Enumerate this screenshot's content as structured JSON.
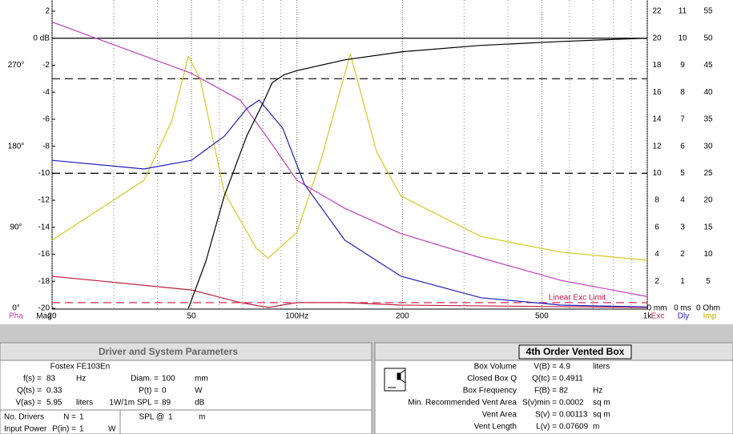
{
  "chart_data": {
    "type": "line",
    "xscale": "log",
    "xlim": [
      20,
      1000
    ],
    "xticks": [
      20,
      50,
      {
        "value": 100,
        "label": "100Hz"
      },
      200,
      500,
      {
        "value": 1000,
        "label": "1k"
      }
    ],
    "xminor": [
      30,
      40,
      60,
      70,
      80,
      90,
      300,
      400,
      600,
      700,
      800,
      900
    ],
    "axes": {
      "phase": {
        "label": "Pha",
        "color": "#c040c0",
        "lim": [
          0,
          330
        ],
        "ticks": [
          {
            "value": 0,
            "label": "0°"
          },
          {
            "value": 90,
            "label": "90°"
          },
          {
            "value": 180,
            "label": "180°"
          },
          {
            "value": 270,
            "label": "270°"
          }
        ]
      },
      "mag": {
        "label": "Mag",
        "color": "#000000",
        "lim": [
          -20,
          2
        ],
        "ticks": [
          2,
          {
            "value": 0,
            "label": "0 dB"
          },
          -2,
          -4,
          -6,
          -8,
          -10,
          -12,
          -14,
          -16,
          -18,
          -20
        ]
      },
      "exc": {
        "label": "Exc",
        "color": "#c02040",
        "lim": [
          0,
          22
        ],
        "ticks": [
          22,
          20,
          18,
          16,
          14,
          12,
          10,
          8,
          6,
          4,
          2,
          {
            "value": 0,
            "label": "0 mm"
          }
        ]
      },
      "dly": {
        "label": "Dly",
        "color": "#2020c0",
        "lim": [
          0,
          11
        ],
        "ticks": [
          11,
          10,
          9,
          8,
          7,
          6,
          5,
          4,
          3,
          2,
          1,
          {
            "value": 0,
            "label": "0 ms"
          }
        ]
      },
      "imp": {
        "label": "Imp",
        "color": "#b8a800",
        "lim": [
          0,
          55
        ],
        "ticks": [
          55,
          50,
          45,
          40,
          35,
          30,
          25,
          20,
          15,
          10,
          5,
          {
            "value": 0,
            "label": "0 Ohm"
          }
        ]
      }
    },
    "ref_lines": [
      {
        "axis": "mag",
        "value": 0,
        "style": "solid",
        "color": "#000000"
      },
      {
        "axis": "mag",
        "value": -3,
        "style": "dashed",
        "color": "#000000"
      },
      {
        "axis": "mag",
        "value": -10,
        "style": "dashed",
        "color": "#000000"
      },
      {
        "axis": "exc",
        "value": 0.42,
        "style": "dashed",
        "color": "#d01040",
        "label": "Linear Exc Limit"
      }
    ],
    "series": [
      {
        "axis": "imp",
        "color": "#d8c820",
        "x": [
          20,
          36.6,
          44,
          49,
          53,
          62,
          76.6,
          82.8,
          100,
          117,
          142,
          169,
          198,
          335,
          566,
          1000
        ],
        "values": [
          12.6,
          23.7,
          34.8,
          46.7,
          42.3,
          21.5,
          11.1,
          9.3,
          14.1,
          27.4,
          47.1,
          28.9,
          20.8,
          13.3,
          10.4,
          8.9
        ]
      },
      {
        "axis": "phase",
        "color": "#c040c0",
        "x": [
          20,
          50,
          69,
          85,
          100,
          137,
          198,
          335,
          566,
          1000
        ],
        "values": [
          318,
          261,
          231,
          182,
          142,
          111,
          83,
          56,
          31,
          13
        ]
      },
      {
        "axis": "exc",
        "color": "#c02040",
        "x": [
          20,
          50,
          69,
          83,
          100,
          137,
          198,
          1000
        ],
        "values": [
          2.37,
          1.36,
          0.42,
          0.06,
          0.42,
          0.42,
          0.24,
          0.06
        ]
      },
      {
        "axis": "dly",
        "color": "#2020c0",
        "x": [
          20,
          36.6,
          50,
          62,
          72,
          78,
          91,
          105,
          137,
          198,
          335,
          566,
          1000
        ],
        "values": [
          5.48,
          5.16,
          5.48,
          6.37,
          7.4,
          7.71,
          6.67,
          4.6,
          2.52,
          1.19,
          0.39,
          0.12,
          0.05
        ]
      },
      {
        "axis": "mag",
        "color": "#000000",
        "x": [
          49,
          55,
          62,
          72,
          80,
          85,
          92,
          100,
          137,
          200,
          335,
          566,
          1000
        ],
        "values": [
          -20,
          -16.5,
          -11.7,
          -7.2,
          -4.8,
          -3.3,
          -2.7,
          -2.4,
          -1.6,
          -1.0,
          -0.53,
          -0.24,
          0
        ]
      }
    ]
  },
  "driver_panel": {
    "title": "Driver and System Parameters",
    "driver": "Fostex  FE103En",
    "rows": [
      [
        {
          "label": "f(s) =",
          "value": "83",
          "unit": "Hz"
        },
        {
          "label": "Diam. =",
          "value": "100",
          "unit": "mm"
        }
      ],
      [
        {
          "label": "Q(ts) =",
          "value": "0.33"
        },
        {
          "label": "P(t) =",
          "value": "0",
          "unit": "W"
        }
      ],
      [
        {
          "label": "V(as) =",
          "value": "5.95",
          "unit": "liters"
        },
        {
          "label": "1W/1m SPL =",
          "value": "89",
          "unit": "dB"
        }
      ]
    ],
    "extra_rows": [
      [
        {
          "caption": "No. Drivers",
          "label": "N =",
          "value": "1"
        },
        {
          "label": "SPL @",
          "value": "1",
          "unit": "m"
        }
      ],
      [
        {
          "caption": "Input Power",
          "label": "P(in) =",
          "value": "1",
          "unit": "W"
        }
      ]
    ]
  },
  "box_panel": {
    "title": "4th Order Vented Box",
    "rows": [
      {
        "label": "Box Volume",
        "symbol": "V(B) =",
        "value": "4.9",
        "unit": "liters"
      },
      {
        "label": "Closed Box Q",
        "symbol": "Q(tc) =",
        "value": "0.4911"
      },
      {
        "label": "Box Frequency",
        "symbol": "F(B) =",
        "value": "82",
        "unit": "Hz"
      },
      {
        "label": "Min. Recommended Vent Area",
        "symbol": "S(v)min =",
        "value": "0.0002",
        "unit": "sq m"
      },
      {
        "label": "Vent Area",
        "symbol": "S(v) =",
        "value": "0.00113",
        "unit": "sq m"
      },
      {
        "label": "Vent Length",
        "symbol": "L(v) =",
        "value": "0.07609",
        "unit": "m"
      }
    ]
  }
}
